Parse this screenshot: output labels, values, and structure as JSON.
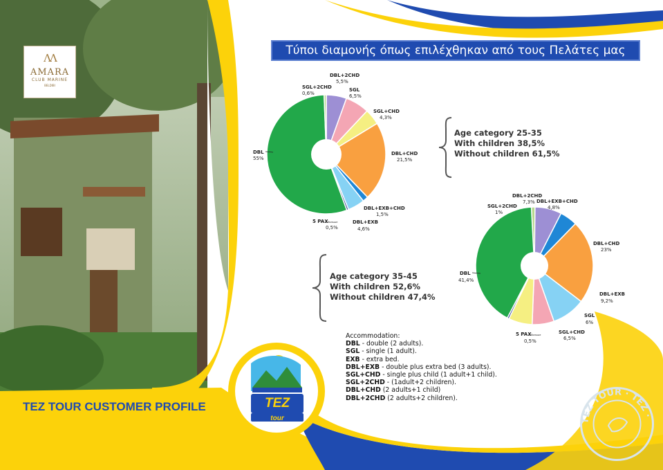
{
  "title": "Τύποι διαμονής όπως επιλέχθηκαν από τους Πελάτες μας",
  "logo": {
    "mark": "ΛΛ",
    "name": "AMARA",
    "sub": "CLUB MARINE",
    "sub2": "BELDIBI"
  },
  "tez_logo": {
    "line1": "TEZ",
    "line2": "tour"
  },
  "stamp": {
    "text": "TEZ TOUR · TEZ ·"
  },
  "profile_label": "TEZ TOUR CUSTOMER PROFILE",
  "summary_1": {
    "line1": "Age category 25-35",
    "line2": "With children 38,5%",
    "line3": "Without children 61,5%"
  },
  "summary_2": {
    "line1": "Age category 35-45",
    "line2": "With children 52,6%",
    "line3": "Without children 47,4%"
  },
  "legend": {
    "heading": "Accommodation:",
    "items": [
      {
        "code": "DBL",
        "desc": " - double (2 adults)."
      },
      {
        "code": "SGL",
        "desc": " - single (1 adult)."
      },
      {
        "code": "EXB",
        "desc": " - extra bed."
      },
      {
        "code": "DBL+EXB",
        "desc": " - double plus extra bed (3 adults)."
      },
      {
        "code": "SGL+CHD",
        "desc": " - single plus child (1 adult+1 child)."
      },
      {
        "code": "SGL+2CHD",
        "desc": " - (1adult+2 children)."
      },
      {
        "code": "DBL+CHD",
        "desc": " (2 adults+1 child)"
      },
      {
        "code": "DBL+2CHD",
        "desc": " (2 adults+2 children)."
      }
    ]
  },
  "colors": {
    "DBL": "#22a84a",
    "DBL+2CHD": "#9d8fd4",
    "SGL": "#f4a6b4",
    "SGL+CHD": "#f5ef82",
    "DBL+CHD": "#f9a040",
    "DBL+EXB+CHD": "#1f87d6",
    "DBL+EXB": "#86d2f4",
    "5 PAX": "#2b3e8c",
    "SGL+2CHD": "#b7d98e",
    "title_bg": "#1f4bb0",
    "yellow": "#fcd20a",
    "blue": "#1f4bb0"
  },
  "chart_data": [
    {
      "type": "pie",
      "title": "",
      "slices": [
        {
          "name": "DBL+2CHD",
          "label": "DBL+2CHD",
          "value_label": "5,5%",
          "value": 5.5
        },
        {
          "name": "SGL",
          "label": "SGL",
          "value_label": "6,5%",
          "value": 6.5
        },
        {
          "name": "SGL+CHD",
          "label": "SGL+CHD",
          "value_label": "4,3%",
          "value": 4.3
        },
        {
          "name": "DBL+CHD",
          "label": "DBL+CHD",
          "value_label": "21,5%",
          "value": 21.5
        },
        {
          "name": "DBL+EXB+CHD",
          "label": "DBL+EXB+CHD",
          "value_label": "1,5%",
          "value": 1.5
        },
        {
          "name": "DBL+EXB",
          "label": "DBL+EXB",
          "value_label": "4,6%",
          "value": 4.6
        },
        {
          "name": "5 PAX",
          "label": "5 PAX",
          "label_small": "и больше",
          "value_label": "0,5%",
          "value": 0.5
        },
        {
          "name": "DBL",
          "label": "DBL",
          "value_label": "55%",
          "value": 55
        },
        {
          "name": "SGL+2CHD",
          "label": "SGL+2CHD",
          "value_label": "0,6%",
          "value": 0.6
        }
      ]
    },
    {
      "type": "pie",
      "title": "",
      "slices": [
        {
          "name": "SGL+2CHD",
          "label": "SGL+2CHD",
          "value_label": "1%",
          "value": 1
        },
        {
          "name": "DBL+2CHD",
          "label": "DBL+2CHD",
          "value_label": "7,3%",
          "value": 7.3
        },
        {
          "name": "DBL+EXB+CHD",
          "label": "DBL+EXB+CHD",
          "value_label": "4,8%",
          "value": 4.8
        },
        {
          "name": "DBL+CHD",
          "label": "DBL+CHD",
          "value_label": "23%",
          "value": 23
        },
        {
          "name": "DBL+EXB",
          "label": "DBL+EXB",
          "value_label": "9,2%",
          "value": 9.2
        },
        {
          "name": "SGL",
          "label": "SGL",
          "value_label": "6%",
          "value": 6
        },
        {
          "name": "SGL+CHD",
          "label": "SGL+CHD",
          "value_label": "6,5%",
          "value": 6.5
        },
        {
          "name": "5 PAX",
          "label": "5 PAX",
          "label_small": "и больше",
          "value_label": "0,5%",
          "value": 0.5
        },
        {
          "name": "DBL",
          "label": "DBL",
          "value_label": "41,4%",
          "value": 41.4
        }
      ]
    }
  ]
}
